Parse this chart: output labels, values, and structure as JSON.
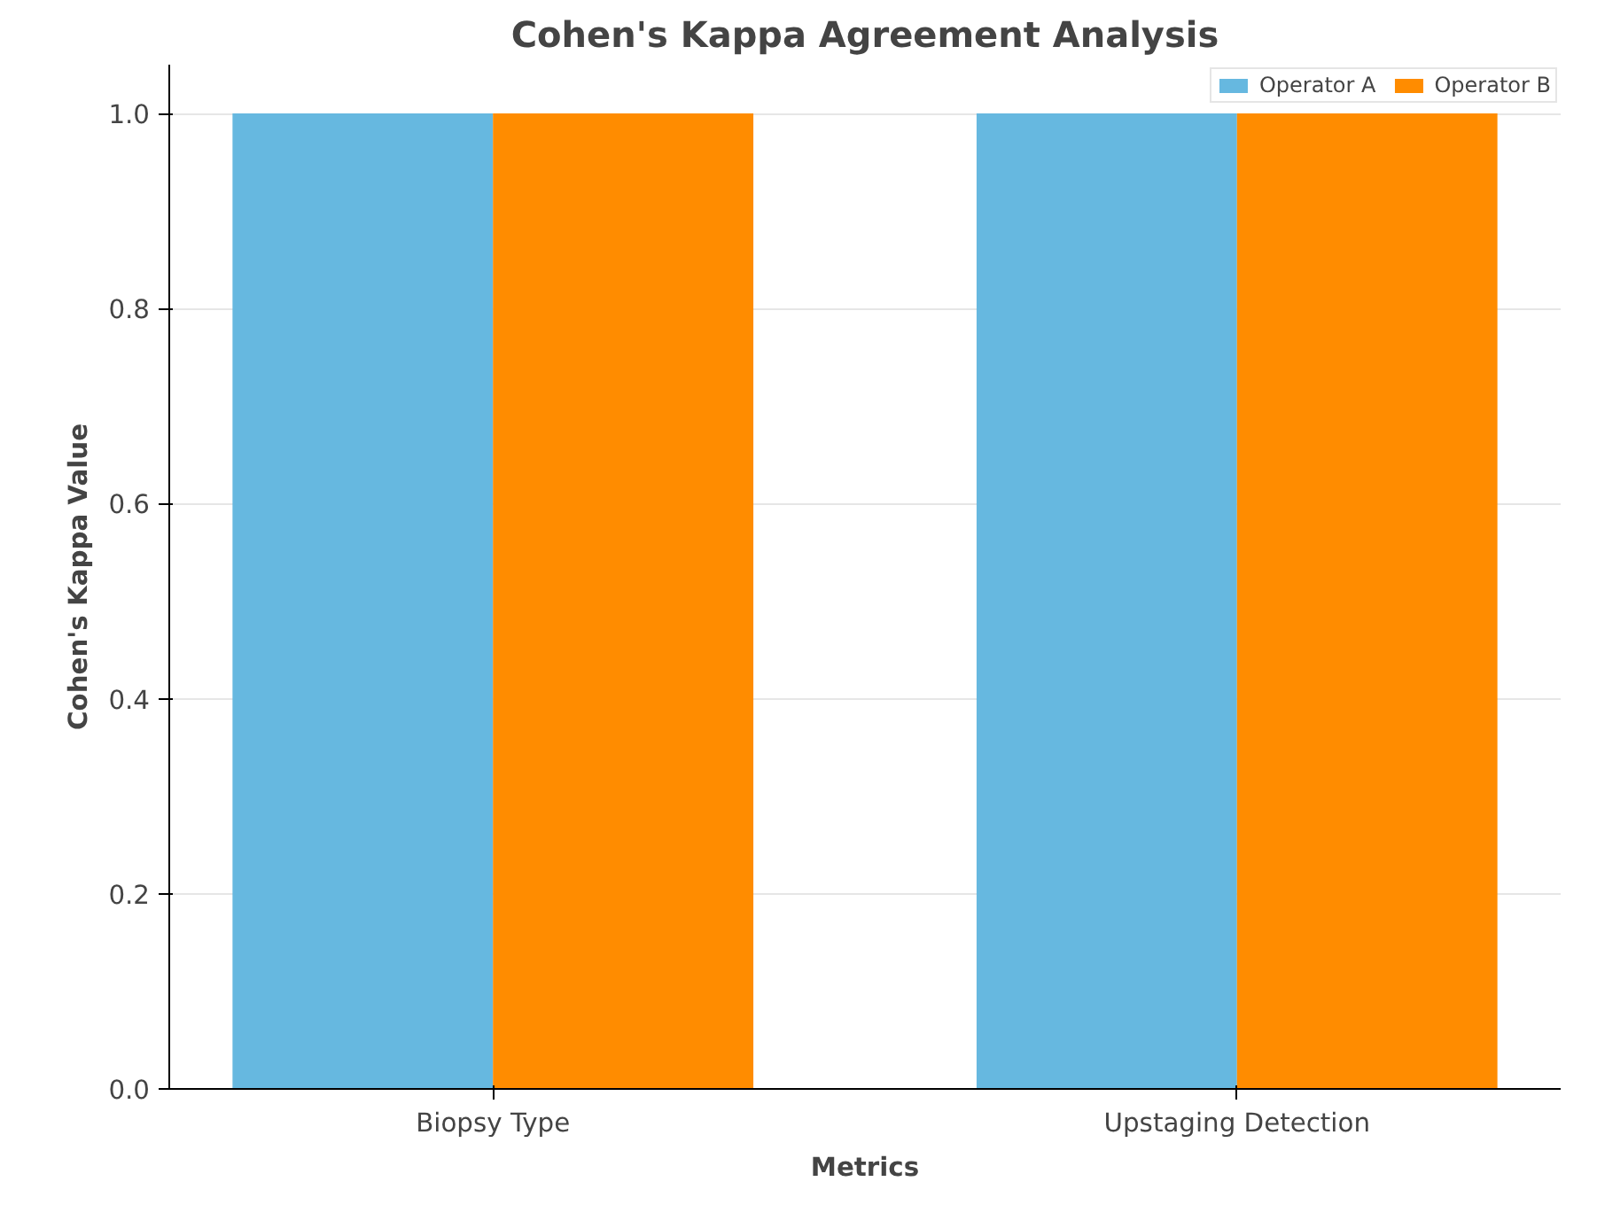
{
  "chart_data": {
    "type": "bar",
    "title": "Cohen's Kappa Agreement Analysis",
    "xlabel": "Metrics",
    "ylabel": "Cohen's Kappa Value",
    "categories": [
      "Biopsy Type",
      "Upstaging Detection"
    ],
    "series": [
      {
        "name": "Operator A",
        "color": "#66b8e0",
        "values": [
          1.0,
          1.0
        ]
      },
      {
        "name": "Operator B",
        "color": "#ff8c00",
        "values": [
          1.0,
          1.0
        ]
      }
    ],
    "ylim": [
      0,
      1.05
    ],
    "yticks": [
      {
        "value": 0,
        "label": "0.0"
      },
      {
        "value": 0.2,
        "label": "0.2"
      },
      {
        "value": 0.4,
        "label": "0.4"
      },
      {
        "value": 0.6,
        "label": "0.6"
      },
      {
        "value": 0.8,
        "label": "0.8"
      },
      {
        "value": 1,
        "label": "1.0"
      }
    ],
    "grid": "y",
    "legend": "top right"
  }
}
